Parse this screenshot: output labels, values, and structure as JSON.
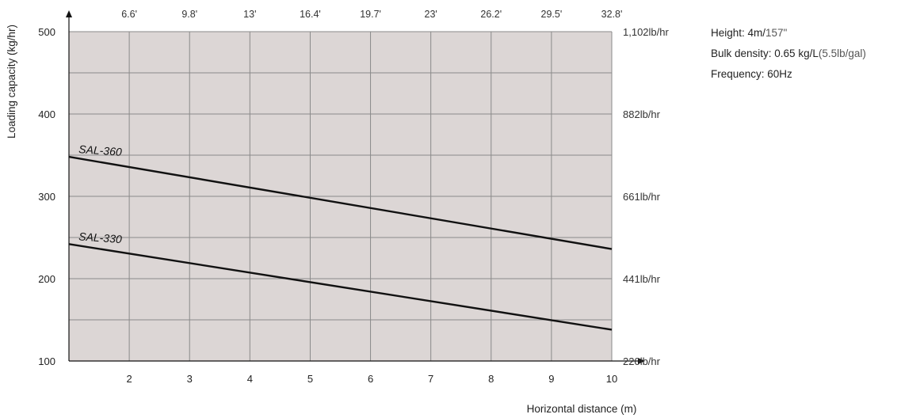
{
  "chart_data": {
    "type": "line",
    "ylabel": "Loading capacity (kg/hr)",
    "xlabel": "Horizontal distance (m)",
    "xlim": [
      1,
      10
    ],
    "ylim": [
      100,
      500
    ],
    "grid": true,
    "x_ticks": [
      "2",
      "3",
      "4",
      "5",
      "6",
      "7",
      "8",
      "9",
      "10"
    ],
    "y_ticks": [
      "100",
      "200",
      "300",
      "400",
      "500"
    ],
    "top_ticks": [
      "6.6'",
      "9.8'",
      "13'",
      "16.4'",
      "19.7'",
      "23'",
      "26.2'",
      "29.5'",
      "32.8'"
    ],
    "right_ticks": [
      "220lb/hr",
      "441lb/hr",
      "661lb/hr",
      "882lb/hr",
      "1,102lb/hr"
    ],
    "series": [
      {
        "name": "SAL-360",
        "x": [
          1,
          10
        ],
        "y": [
          348,
          236
        ]
      },
      {
        "name": "SAL-330",
        "x": [
          1,
          10
        ],
        "y": [
          242,
          138
        ]
      }
    ],
    "colors": {
      "plot_bg": "#dcd6d5",
      "grid": "#8a8a8a",
      "line": "#111111"
    }
  },
  "info": {
    "height_prefix": "Height: 4m/",
    "height_inches": "157\"",
    "bulk_prefix": "Bulk density: 0.65 kg/L",
    "bulk_suffix": "(5.5lb/gal)",
    "frequency": "Frequency: 60Hz"
  }
}
